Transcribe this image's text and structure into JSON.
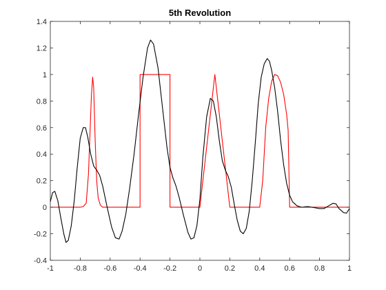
{
  "chart_data": {
    "type": "line",
    "title": "5th Revolution",
    "xlabel": "",
    "ylabel": "",
    "xlim": [
      -1,
      1
    ],
    "ylim": [
      -0.4,
      1.4
    ],
    "x_ticks": [
      "-1",
      "-0.8",
      "-0.6",
      "-0.4",
      "-0.2",
      "0",
      "0.2",
      "0.4",
      "0.6",
      "0.8",
      "1"
    ],
    "y_ticks": [
      "-0.4",
      "-0.2",
      "0",
      "0.2",
      "0.4",
      "0.6",
      "0.8",
      "1",
      "1.2",
      "1.4"
    ],
    "grid": false,
    "series": [
      {
        "color": "#ff0000",
        "points": [
          [
            -1.0,
            0
          ],
          [
            -0.8,
            0
          ],
          [
            -0.78,
            0.005
          ],
          [
            -0.76,
            0.03
          ],
          [
            -0.745,
            0.25
          ],
          [
            -0.735,
            0.55
          ],
          [
            -0.725,
            0.85
          ],
          [
            -0.717,
            0.98
          ],
          [
            -0.71,
            0.9
          ],
          [
            -0.7,
            0.5
          ],
          [
            -0.69,
            0.2
          ],
          [
            -0.68,
            0.07
          ],
          [
            -0.665,
            0.015
          ],
          [
            -0.65,
            0
          ],
          [
            -0.4,
            0
          ],
          [
            -0.4,
            1
          ],
          [
            -0.2,
            1
          ],
          [
            -0.2,
            0
          ],
          [
            0,
            0
          ],
          [
            0.1,
            1
          ],
          [
            0.2,
            0
          ],
          [
            0.4,
            0
          ],
          [
            0.42,
            0.2
          ],
          [
            0.44,
            0.6
          ],
          [
            0.46,
            0.82
          ],
          [
            0.48,
            0.95
          ],
          [
            0.5,
            1.0
          ],
          [
            0.52,
            0.99
          ],
          [
            0.54,
            0.94
          ],
          [
            0.56,
            0.85
          ],
          [
            0.58,
            0.7
          ],
          [
            0.59,
            0.58
          ],
          [
            0.6,
            0
          ],
          [
            1.0,
            0
          ]
        ]
      },
      {
        "color": "#000000",
        "points": [
          [
            -1.0,
            0.04
          ],
          [
            -0.985,
            0.11
          ],
          [
            -0.97,
            0.12
          ],
          [
            -0.95,
            0.05
          ],
          [
            -0.93,
            -0.08
          ],
          [
            -0.91,
            -0.2
          ],
          [
            -0.895,
            -0.265
          ],
          [
            -0.88,
            -0.25
          ],
          [
            -0.86,
            -0.14
          ],
          [
            -0.84,
            0.05
          ],
          [
            -0.82,
            0.3
          ],
          [
            -0.8,
            0.52
          ],
          [
            -0.78,
            0.6
          ],
          [
            -0.765,
            0.6
          ],
          [
            -0.75,
            0.53
          ],
          [
            -0.73,
            0.4
          ],
          [
            -0.71,
            0.31
          ],
          [
            -0.69,
            0.28
          ],
          [
            -0.67,
            0.24
          ],
          [
            -0.65,
            0.16
          ],
          [
            -0.62,
            0.0
          ],
          [
            -0.59,
            -0.15
          ],
          [
            -0.565,
            -0.23
          ],
          [
            -0.54,
            -0.24
          ],
          [
            -0.52,
            -0.18
          ],
          [
            -0.495,
            -0.05
          ],
          [
            -0.47,
            0.14
          ],
          [
            -0.44,
            0.4
          ],
          [
            -0.41,
            0.7
          ],
          [
            -0.38,
            0.98
          ],
          [
            -0.35,
            1.2
          ],
          [
            -0.33,
            1.26
          ],
          [
            -0.31,
            1.23
          ],
          [
            -0.28,
            1.05
          ],
          [
            -0.25,
            0.75
          ],
          [
            -0.22,
            0.45
          ],
          [
            -0.2,
            0.3
          ],
          [
            -0.18,
            0.22
          ],
          [
            -0.16,
            0.16
          ],
          [
            -0.14,
            0.08
          ],
          [
            -0.11,
            -0.06
          ],
          [
            -0.08,
            -0.19
          ],
          [
            -0.06,
            -0.24
          ],
          [
            -0.04,
            -0.23
          ],
          [
            -0.02,
            -0.14
          ],
          [
            0.0,
            0.06
          ],
          [
            0.02,
            0.38
          ],
          [
            0.045,
            0.68
          ],
          [
            0.07,
            0.82
          ],
          [
            0.09,
            0.8
          ],
          [
            0.11,
            0.68
          ],
          [
            0.13,
            0.5
          ],
          [
            0.15,
            0.35
          ],
          [
            0.17,
            0.28
          ],
          [
            0.19,
            0.23
          ],
          [
            0.21,
            0.15
          ],
          [
            0.23,
            0.02
          ],
          [
            0.25,
            -0.1
          ],
          [
            0.27,
            -0.18
          ],
          [
            0.29,
            -0.2
          ],
          [
            0.31,
            -0.16
          ],
          [
            0.33,
            -0.03
          ],
          [
            0.35,
            0.2
          ],
          [
            0.37,
            0.48
          ],
          [
            0.39,
            0.78
          ],
          [
            0.41,
            0.98
          ],
          [
            0.43,
            1.08
          ],
          [
            0.45,
            1.12
          ],
          [
            0.465,
            1.1
          ],
          [
            0.48,
            1.03
          ],
          [
            0.5,
            0.9
          ],
          [
            0.52,
            0.72
          ],
          [
            0.54,
            0.5
          ],
          [
            0.56,
            0.32
          ],
          [
            0.58,
            0.18
          ],
          [
            0.6,
            0.09
          ],
          [
            0.62,
            0.04
          ],
          [
            0.65,
            0.01
          ],
          [
            0.68,
            0.0
          ],
          [
            0.72,
            0.005
          ],
          [
            0.75,
            0.0
          ],
          [
            0.8,
            -0.01
          ],
          [
            0.83,
            -0.01
          ],
          [
            0.86,
            0.01
          ],
          [
            0.89,
            0.03
          ],
          [
            0.91,
            0.025
          ],
          [
            0.93,
            -0.01
          ],
          [
            0.96,
            -0.04
          ],
          [
            0.98,
            -0.045
          ],
          [
            1.0,
            -0.01
          ]
        ]
      }
    ]
  }
}
